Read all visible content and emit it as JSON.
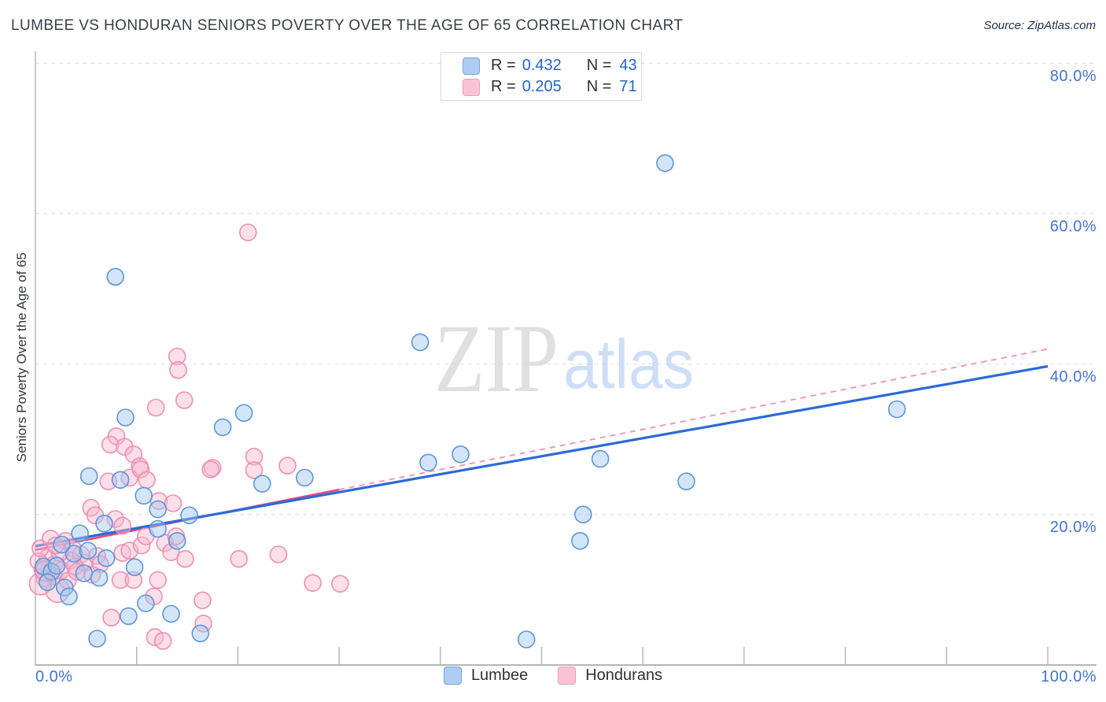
{
  "header": {
    "title": "LUMBEE VS HONDURAN SENIORS POVERTY OVER THE AGE OF 65 CORRELATION CHART",
    "source": "Source: ZipAtlas.com"
  },
  "watermark": {
    "zip": "ZIP",
    "atlas": "atlas"
  },
  "y_axis": {
    "label": "Seniors Poverty Over the Age of 65",
    "tick_labels": [
      "80.0%",
      "60.0%",
      "40.0%",
      "20.0%"
    ]
  },
  "x_axis": {
    "min_label": "0.0%",
    "max_label": "100.0%"
  },
  "legend_box": {
    "rows": [
      {
        "series": "Lumbee",
        "r_label": "R =",
        "r_value": "0.432",
        "n_label": "N =",
        "n_value": "43"
      },
      {
        "series": "Hondurans",
        "r_label": "R =",
        "r_value": "0.205",
        "n_label": "N =",
        "n_value": "71"
      }
    ]
  },
  "bottom_legend": {
    "items": [
      {
        "label": "Lumbee"
      },
      {
        "label": "Hondurans"
      }
    ]
  },
  "colors": {
    "lumbee_fill": "#9ec5ef",
    "lumbee_stroke": "#5e95d8",
    "honduran_fill": "#f8b9cf",
    "honduran_stroke": "#ee8fb2",
    "trend_lumbee": "#2b6ad6",
    "trend_honduran_solid": "#e8477e",
    "trend_honduran_dashed": "#f290b2",
    "gridline": "#dcdcdc",
    "spine": "#b3b3b3",
    "tick_label_blue": "#4473d6"
  },
  "chart_data": {
    "type": "scatter",
    "title": "LUMBEE VS HONDURAN SENIORS POVERTY OVER THE AGE OF 65 CORRELATION CHART",
    "xlabel": "",
    "ylabel": "Seniors Poverty Over the Age of 65",
    "xlim": [
      0,
      100
    ],
    "ylim": [
      0,
      81.6
    ],
    "x_ticks": [
      10,
      20,
      30,
      40,
      50,
      60,
      70,
      80,
      90,
      100
    ],
    "y_gridlines": [
      20,
      40,
      60,
      80
    ],
    "legend_position": "bottom-center",
    "grid": "horizontal-dashed",
    "series": [
      {
        "name": "Lumbee",
        "R": 0.432,
        "N": 43,
        "points": [
          [
            7.9,
            51.6
          ],
          [
            62.2,
            66.7
          ],
          [
            38,
            42.9
          ],
          [
            85.1,
            34
          ],
          [
            20.6,
            33.5
          ],
          [
            18.5,
            31.6
          ],
          [
            8.9,
            32.9
          ],
          [
            55.8,
            27.4
          ],
          [
            64.3,
            24.4
          ],
          [
            38.8,
            26.9
          ],
          [
            42,
            28
          ],
          [
            26.6,
            24.9
          ],
          [
            22.4,
            24.1
          ],
          [
            8.4,
            24.6
          ],
          [
            5.3,
            25.1
          ],
          [
            10.7,
            22.5
          ],
          [
            12.1,
            20.7
          ],
          [
            15.2,
            19.9
          ],
          [
            54.1,
            20
          ],
          [
            53.8,
            16.5
          ],
          [
            6.8,
            18.8
          ],
          [
            4.4,
            17.5
          ],
          [
            14,
            16.5
          ],
          [
            12.1,
            18.1
          ],
          [
            0.8,
            13.1
          ],
          [
            1.6,
            12.4
          ],
          [
            2.9,
            10.3
          ],
          [
            3.3,
            9.1
          ],
          [
            10.9,
            8.2
          ],
          [
            9.2,
            6.5
          ],
          [
            13.4,
            6.8
          ],
          [
            16.3,
            4.2
          ],
          [
            6.1,
            3.5
          ],
          [
            48.5,
            3.4
          ],
          [
            2.1,
            13.2
          ],
          [
            3.8,
            14.8
          ],
          [
            2.6,
            16
          ],
          [
            5.2,
            15.2
          ],
          [
            7,
            14.2
          ],
          [
            4.8,
            12.2
          ],
          [
            6.3,
            11.6
          ],
          [
            1.2,
            11
          ],
          [
            9.8,
            13
          ]
        ]
      },
      {
        "name": "Hondurans",
        "R": 0.205,
        "N": 71,
        "points": [
          [
            21,
            57.5
          ],
          [
            14,
            41
          ],
          [
            14.1,
            39.2
          ],
          [
            14.7,
            35.2
          ],
          [
            11.9,
            34.2
          ],
          [
            8,
            30.4
          ],
          [
            7.4,
            29.3
          ],
          [
            8.8,
            29
          ],
          [
            9.7,
            28
          ],
          [
            10.3,
            26.4
          ],
          [
            21.6,
            27.7
          ],
          [
            17.5,
            26.2
          ],
          [
            21.6,
            25.9
          ],
          [
            24.9,
            26.5
          ],
          [
            24,
            14.7
          ],
          [
            27.4,
            10.9
          ],
          [
            30.1,
            10.8
          ],
          [
            9.3,
            24.9
          ],
          [
            7.2,
            24.4
          ],
          [
            10.4,
            26
          ],
          [
            11,
            24.6
          ],
          [
            12.2,
            21.8
          ],
          [
            13.6,
            21.5
          ],
          [
            5.5,
            20.9
          ],
          [
            5.9,
            19.9
          ],
          [
            7.9,
            19.4
          ],
          [
            8.6,
            18.5
          ],
          [
            3,
            16.5
          ],
          [
            3.7,
            15.5
          ],
          [
            1.2,
            14.3
          ],
          [
            0.3,
            13.8
          ],
          [
            1.9,
            13.4
          ],
          [
            0.9,
            11.5
          ],
          [
            2.6,
            12.6
          ],
          [
            3.5,
            13.9
          ],
          [
            4.5,
            14.7
          ],
          [
            4.9,
            13.6
          ],
          [
            6.1,
            14.5
          ],
          [
            3.9,
            13.1
          ],
          [
            2.2,
            9.9,
            15
          ],
          [
            8.6,
            14.9
          ],
          [
            9.3,
            15.2
          ],
          [
            10.5,
            15.9
          ],
          [
            12.8,
            16.2
          ],
          [
            10.9,
            17.1
          ],
          [
            13.4,
            15
          ],
          [
            6.4,
            13.4
          ],
          [
            8.4,
            11.3
          ],
          [
            9.7,
            11.3
          ],
          [
            12.1,
            11.3
          ],
          [
            11.7,
            9.1
          ],
          [
            7.5,
            6.3
          ],
          [
            16.5,
            8.6
          ],
          [
            16.6,
            5.5
          ],
          [
            11.8,
            3.7
          ],
          [
            12.6,
            3.2
          ],
          [
            20.1,
            14.1
          ],
          [
            13.9,
            17.1
          ],
          [
            14.8,
            14.1
          ],
          [
            17.3,
            26
          ],
          [
            0.5,
            15.5
          ],
          [
            1.5,
            16.8
          ],
          [
            2.4,
            14.9
          ],
          [
            0.7,
            12.7
          ],
          [
            1.8,
            11.8
          ],
          [
            3.2,
            11.2
          ],
          [
            4.1,
            12.4
          ],
          [
            5.6,
            12
          ],
          [
            2,
            15.9
          ],
          [
            0.5,
            10.8,
            14
          ],
          [
            1,
            12.5,
            13
          ]
        ]
      }
    ],
    "trend_lines": [
      {
        "series": "Lumbee",
        "x0": 0,
        "y0": 15.8,
        "x1": 100,
        "y1": 39.7,
        "style": "solid"
      },
      {
        "series": "Hondurans",
        "x0": 0,
        "y0": 15.3,
        "x1": 100,
        "y1": 42.0,
        "style": "solid-then-dashed",
        "solid_until_x": 30
      }
    ]
  }
}
